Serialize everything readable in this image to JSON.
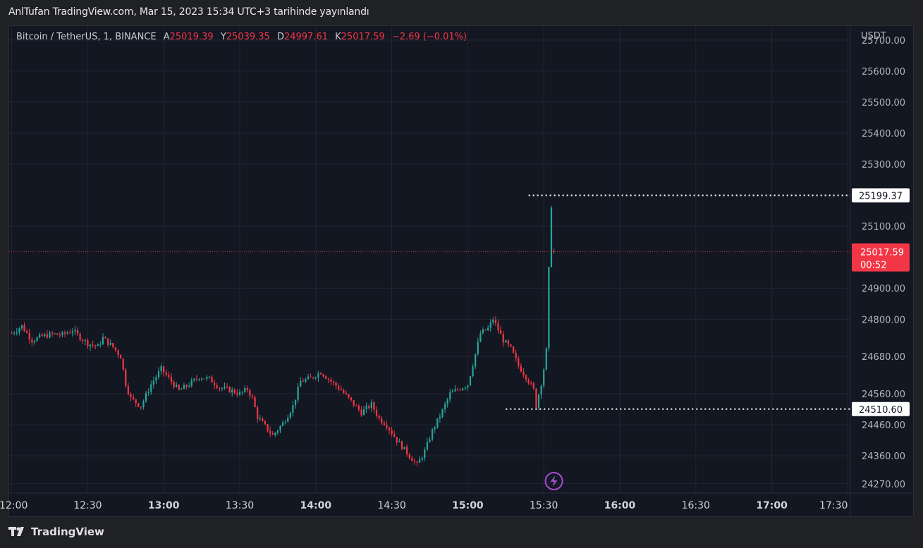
{
  "header": {
    "publish_line": "AnlTufan TradingView.com, Mar 15, 2023 15:34 UTC+3 tarihinde yayınlandı"
  },
  "legend": {
    "symbol": "Bitcoin / TetherUS, 1, BINANCE",
    "open_label": "A",
    "open": "25019.39",
    "high_label": "Y",
    "high": "25039.35",
    "low_label": "D",
    "low": "24997.61",
    "close_label": "K",
    "close": "25017.59",
    "change": "−2.69 (−0.01%)"
  },
  "footer": {
    "brand": "TradingView"
  },
  "colors": {
    "up": "#26a69a",
    "down": "#f23645",
    "background": "#131722",
    "grid": "#232632",
    "last_price_label": "#f23645"
  },
  "chart_data": {
    "type": "candlestick",
    "symbol": "BTCUSDT",
    "exchange": "BINANCE",
    "interval": "1",
    "currency_label": "USDT",
    "y_ticks": [
      "25700.00",
      "25600.00",
      "25500.00",
      "25400.00",
      "25300.00",
      "25100.00",
      "24900.00",
      "24800.00",
      "24680.00",
      "24560.00",
      "24460.00",
      "24360.00",
      "24270.00"
    ],
    "x_ticks": [
      "12:00",
      "12:30",
      "13:00",
      "13:30",
      "14:00",
      "14:30",
      "15:00",
      "15:30",
      "16:00",
      "16:30",
      "17:00",
      "17:30"
    ],
    "x_ticks_bold": [
      "13:00",
      "14:00",
      "15:00",
      "16:00",
      "17:00"
    ],
    "ylim": [
      24240,
      25745
    ],
    "xlim": [
      "11:59",
      "17:31"
    ],
    "last_price": "25017.59",
    "countdown": "00:52",
    "marked_levels": [
      {
        "value": "25199.37",
        "from": "15:24",
        "style": "dotted"
      },
      {
        "value": "24510.60",
        "from": "15:15",
        "style": "dotted"
      }
    ],
    "event_marker": {
      "time": "15:34",
      "icon": "lightning-icon"
    },
    "ohlc_path": [
      [
        "12:00",
        24755
      ],
      [
        "12:04",
        24778
      ],
      [
        "12:08",
        24732
      ],
      [
        "12:12",
        24745
      ],
      [
        "12:16",
        24752
      ],
      [
        "12:20",
        24750
      ],
      [
        "12:24",
        24765
      ],
      [
        "12:27",
        24742
      ],
      [
        "12:30",
        24722
      ],
      [
        "12:34",
        24712
      ],
      [
        "12:36",
        24740
      ],
      [
        "12:40",
        24710
      ],
      [
        "12:43",
        24680
      ],
      [
        "12:45",
        24592
      ],
      [
        "12:47",
        24545
      ],
      [
        "12:51",
        24520
      ],
      [
        "12:55",
        24590
      ],
      [
        "12:59",
        24640
      ],
      [
        "13:02",
        24610
      ],
      [
        "13:06",
        24570
      ],
      [
        "13:10",
        24590
      ],
      [
        "13:14",
        24615
      ],
      [
        "13:18",
        24608
      ],
      [
        "13:22",
        24580
      ],
      [
        "13:26",
        24572
      ],
      [
        "13:30",
        24560
      ],
      [
        "13:33",
        24575
      ],
      [
        "13:35",
        24545
      ],
      [
        "13:37",
        24485
      ],
      [
        "13:40",
        24455
      ],
      [
        "13:43",
        24425
      ],
      [
        "13:47",
        24465
      ],
      [
        "13:51",
        24520
      ],
      [
        "13:54",
        24600
      ],
      [
        "13:58",
        24610
      ],
      [
        "14:02",
        24630
      ],
      [
        "14:06",
        24600
      ],
      [
        "14:10",
        24572
      ],
      [
        "14:14",
        24535
      ],
      [
        "14:18",
        24500
      ],
      [
        "14:22",
        24525
      ],
      [
        "14:25",
        24480
      ],
      [
        "14:28",
        24460
      ],
      [
        "14:32",
        24410
      ],
      [
        "14:36",
        24370
      ],
      [
        "14:40",
        24330
      ],
      [
        "14:43",
        24375
      ],
      [
        "14:46",
        24440
      ],
      [
        "14:50",
        24505
      ],
      [
        "14:53",
        24560
      ],
      [
        "14:57",
        24578
      ],
      [
        "15:00",
        24590
      ],
      [
        "15:02",
        24655
      ],
      [
        "15:05",
        24755
      ],
      [
        "15:08",
        24770
      ],
      [
        "15:10",
        24800
      ],
      [
        "15:14",
        24732
      ],
      [
        "15:17",
        24705
      ],
      [
        "15:20",
        24650
      ],
      [
        "15:23",
        24615
      ],
      [
        "15:26",
        24572
      ],
      [
        "15:27",
        24522
      ],
      [
        "15:29",
        24595
      ],
      [
        "15:30",
        24640
      ],
      [
        "15:31",
        24700
      ],
      [
        "15:32",
        24960
      ],
      [
        "15:33",
        25160
      ],
      [
        "15:34",
        25017.59
      ]
    ],
    "title": ""
  }
}
